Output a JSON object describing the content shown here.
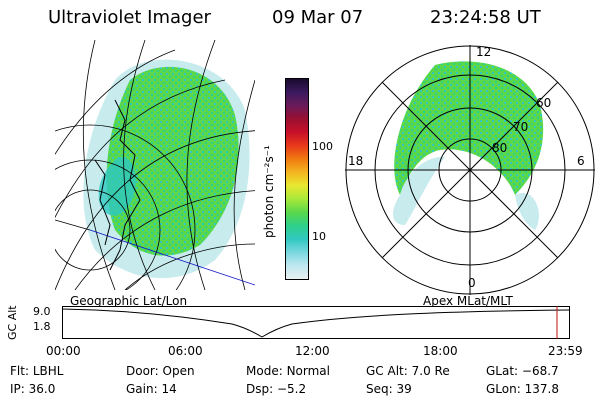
{
  "header": {
    "title": "Ultraviolet Imager",
    "date": "09 Mar 07",
    "time": "23:24:58 UT"
  },
  "left_panel": {
    "label": "Geographic Lat/Lon"
  },
  "right_panel": {
    "label": "Apex  MLat/MLT",
    "clock": {
      "top": "12",
      "bottom": "0",
      "left": "18",
      "right": "6"
    },
    "rings": [
      "60",
      "70",
      "80"
    ]
  },
  "colorbar": {
    "unit_label": "photon cm⁻²s⁻¹",
    "ticks": [
      "100",
      "10"
    ],
    "colors": [
      "#1a0a2e",
      "#3b1a5e",
      "#6a1a5a",
      "#9a1030",
      "#c8102a",
      "#e83a1a",
      "#f07a10",
      "#f4b520",
      "#e8e830",
      "#a8e83a",
      "#5ad84a",
      "#2ed08a",
      "#30c8c0",
      "#7ad8e0",
      "#c0e8f0",
      "#e8f0f0"
    ]
  },
  "timeline": {
    "axis_label": "GC Alt",
    "y_ticks": [
      "9.0",
      "1.8"
    ],
    "x_ticks": [
      "00:00",
      "06:00",
      "12:00",
      "18:00",
      "23:59"
    ],
    "marker_color": "#c01010"
  },
  "status": {
    "row1": [
      {
        "key": "Flt:",
        "value": "LBHL"
      },
      {
        "key": "Door:",
        "value": "Open"
      },
      {
        "key": "Mode:",
        "value": "Normal"
      },
      {
        "key": "GC Alt:",
        "value": "7.0 Re"
      },
      {
        "key": "GLat:",
        "value": "−68.7"
      }
    ],
    "row2": [
      {
        "key": "IP:",
        "value": "36.0"
      },
      {
        "key": "Gain:",
        "value": "14"
      },
      {
        "key": "Dsp:",
        "value": "  −5.2"
      },
      {
        "key": "Seq:",
        "value": "39"
      },
      {
        "key": "GLon:",
        "value": "137.8"
      }
    ]
  },
  "colors": {
    "aurora_green": "#5ad84a",
    "aurora_cyan": "#30c8c0",
    "aurora_light": "#c8ecee",
    "grid_blue": "#1010c8"
  }
}
